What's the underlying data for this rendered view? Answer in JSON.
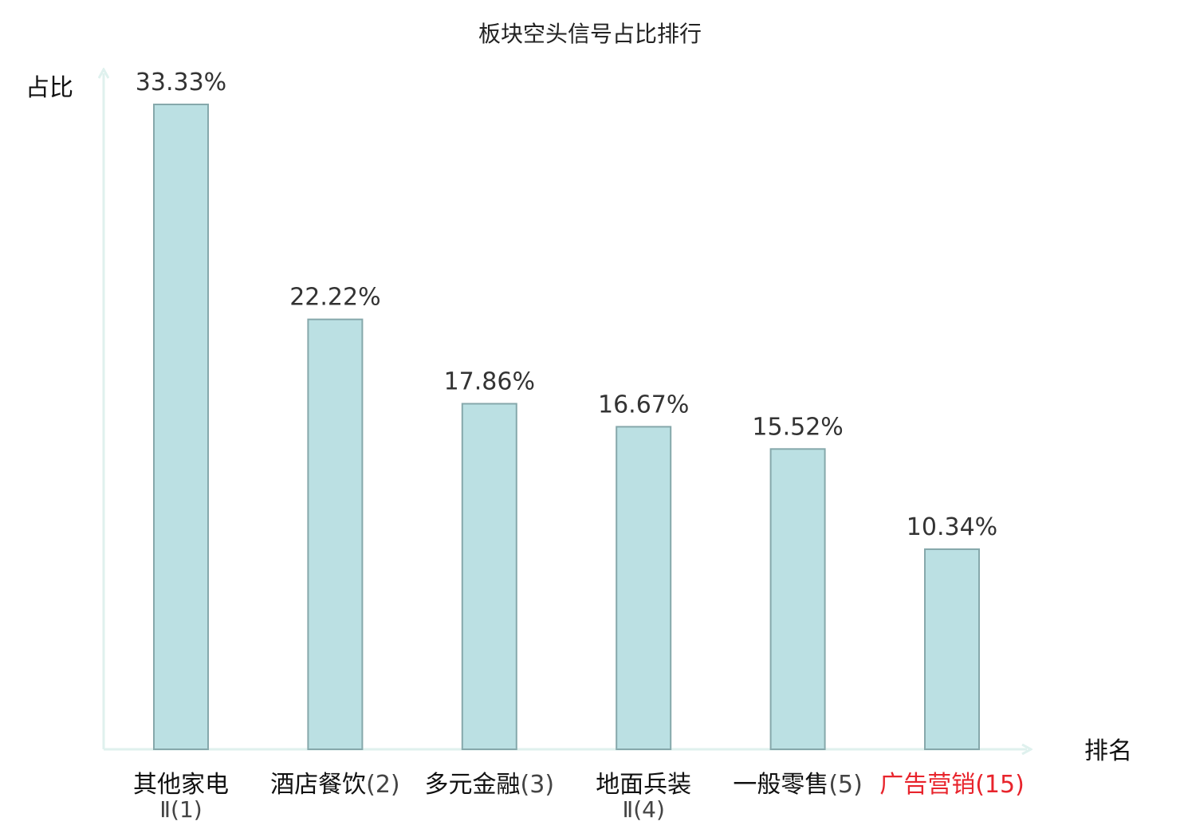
{
  "chart_data": {
    "type": "bar",
    "title": "板块空头信号占比排行",
    "ylabel": "占比",
    "xlabel": "排名",
    "categories": [
      {
        "name": "其他家电",
        "rank_suffix": "",
        "subline": "Ⅱ(1)",
        "highlight": false
      },
      {
        "name": "酒店餐饮",
        "rank_suffix": "(2)",
        "subline": "",
        "highlight": false
      },
      {
        "name": "多元金融",
        "rank_suffix": "(3)",
        "subline": "",
        "highlight": false
      },
      {
        "name": "地面兵装",
        "rank_suffix": "",
        "subline": "Ⅱ(4)",
        "highlight": false
      },
      {
        "name": "一般零售",
        "rank_suffix": "(5)",
        "subline": "",
        "highlight": false
      },
      {
        "name": "广告营销",
        "rank_suffix": "(15)",
        "subline": "",
        "highlight": true
      }
    ],
    "values": [
      33.33,
      22.22,
      17.86,
      16.67,
      15.52,
      10.34
    ],
    "value_labels": [
      "33.33%",
      "22.22%",
      "17.86%",
      "16.67%",
      "15.52%",
      "10.34%"
    ],
    "ylim": [
      0,
      33.33
    ],
    "grid": false,
    "legend": "none",
    "colors": {
      "bar_fill": "#bbe0e3",
      "bar_stroke": "#86a8ab",
      "axis": "#dff1ee",
      "highlight": "#e8242c"
    }
  }
}
